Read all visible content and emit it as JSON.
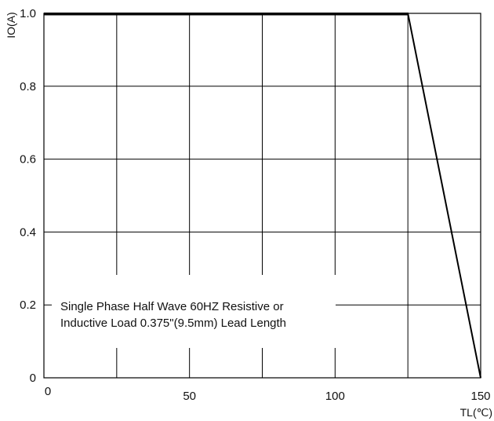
{
  "chart_data": {
    "type": "line",
    "title": "",
    "xlabel": "TL(℃)",
    "ylabel": "IO(A)",
    "xlim": [
      0,
      150
    ],
    "ylim": [
      0,
      1.0
    ],
    "grid": true,
    "x_ticks": [
      0,
      25,
      50,
      75,
      100,
      125,
      150
    ],
    "x_tick_labels": [
      "0",
      "",
      "50",
      "",
      "100",
      "",
      "150"
    ],
    "y_ticks": [
      0,
      0.2,
      0.4,
      0.6,
      0.8,
      1.0
    ],
    "y_tick_labels": [
      "0",
      "0.2",
      "0.4",
      "0.6",
      "0.8",
      "1.0"
    ],
    "series": [
      {
        "x": [
          0,
          125,
          150
        ],
        "y": [
          1.0,
          1.0,
          0
        ],
        "color": "#000000"
      }
    ],
    "annotations": [
      "Single Phase Half Wave  60HZ Resistive or",
      "Inductive Load 0.375\"(9.5mm) Lead Length"
    ]
  }
}
